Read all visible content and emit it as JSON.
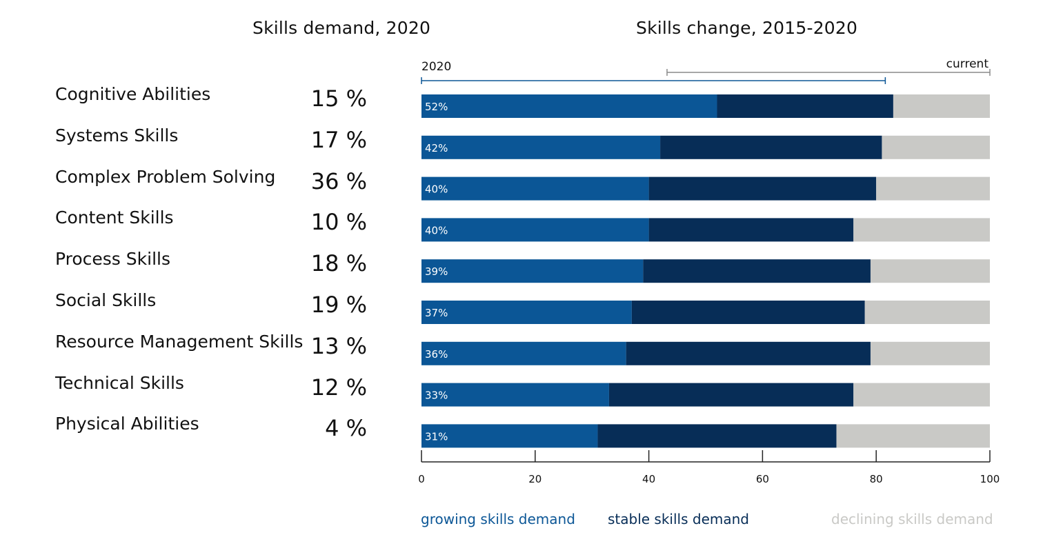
{
  "titles": {
    "left": "Skills demand,  2020",
    "right": "Skills change, 2015-2020"
  },
  "range_labels": {
    "start": "2020",
    "end": "current"
  },
  "colors": {
    "growing": "#0b5696",
    "stable": "#072d57",
    "declining": "#c9c9c6",
    "legend_growing_text": "#0b5696",
    "legend_stable_text": "#072d57",
    "legend_declining_text": "#c9c9c6",
    "bar_label_text": "#ffffff",
    "axis": "#222222"
  },
  "legend": {
    "growing": "growing skills demand",
    "stable": "stable skills demand",
    "declining": "declining skills demand"
  },
  "chart_data": {
    "type": "bar",
    "orientation": "horizontal",
    "stacked": true,
    "title": "Skills change, 2015-2020",
    "categories": [
      "Cognitive Abilities",
      "Systems Skills",
      "Complex Problem Solving",
      "Content Skills",
      "Process Skills",
      "Social Skills",
      "Resource Management Skills",
      "Technical Skills",
      "Physical Abilities"
    ],
    "demand_2020": [
      "15 %",
      "17 %",
      "36 %",
      "10 %",
      "18 %",
      "19 %",
      "13 %",
      "12 %",
      "4 %"
    ],
    "series": [
      {
        "name": "growing skills demand",
        "values": [
          52,
          42,
          40,
          40,
          39,
          37,
          36,
          33,
          31
        ]
      },
      {
        "name": "stable skills demand",
        "values": [
          31,
          39,
          40,
          36,
          40,
          41,
          43,
          43,
          42
        ]
      },
      {
        "name": "declining skills demand",
        "values": [
          17,
          19,
          20,
          24,
          21,
          22,
          21,
          24,
          27
        ]
      }
    ],
    "bar_labels": [
      "52%",
      "42%",
      "40%",
      "40%",
      "39%",
      "37%",
      "36%",
      "33%",
      "31%"
    ],
    "xlim": [
      0,
      100
    ],
    "xticks": [
      0,
      20,
      40,
      60,
      80,
      100
    ],
    "grid": false,
    "legend_position": "bottom"
  }
}
